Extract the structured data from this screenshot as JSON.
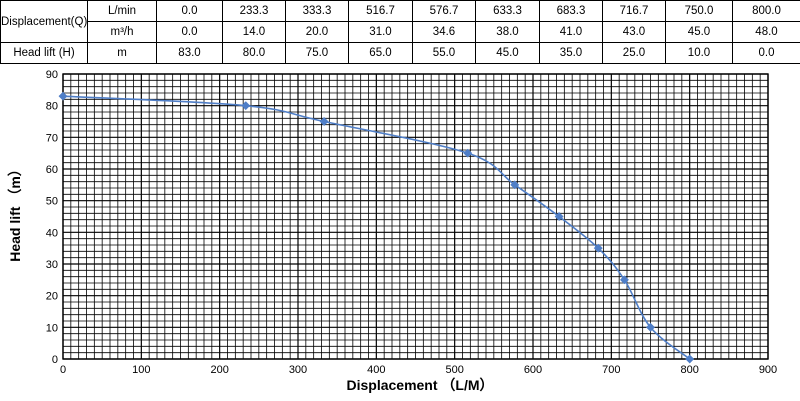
{
  "table": {
    "displacement_label": "Displacement(Q)",
    "head_label": "Head lift (H)",
    "rows": [
      {
        "unit": "L/min",
        "values": [
          "0.0",
          "233.3",
          "333.3",
          "516.7",
          "576.7",
          "633.3",
          "683.3",
          "716.7",
          "750.0",
          "800.0"
        ]
      },
      {
        "unit": "m³/h",
        "values": [
          "0.0",
          "14.0",
          "20.0",
          "31.0",
          "34.6",
          "38.0",
          "41.0",
          "43.0",
          "45.0",
          "48.0"
        ]
      },
      {
        "unit": "m",
        "values": [
          "83.0",
          "80.0",
          "75.0",
          "65.0",
          "55.0",
          "45.0",
          "35.0",
          "25.0",
          "10.0",
          "0.0"
        ]
      }
    ]
  },
  "chart_data": {
    "type": "line",
    "xlabel": "Displacement （L/M）",
    "ylabel": "Head lift （m）",
    "xlim": [
      0,
      900
    ],
    "ylim": [
      0,
      90
    ],
    "x_ticks": [
      0,
      100,
      200,
      300,
      400,
      500,
      600,
      700,
      800,
      900
    ],
    "y_ticks": [
      0,
      10,
      20,
      30,
      40,
      50,
      60,
      70,
      80,
      90
    ],
    "grid": true,
    "series": [
      {
        "color": "#4f7ec7",
        "marker": "diamond",
        "x": [
          0,
          233.3,
          333.3,
          516.7,
          576.7,
          633.3,
          683.3,
          716.7,
          750.0,
          800.0
        ],
        "y": [
          83,
          80,
          75,
          65,
          55,
          45,
          35,
          25,
          10,
          0
        ]
      }
    ]
  }
}
